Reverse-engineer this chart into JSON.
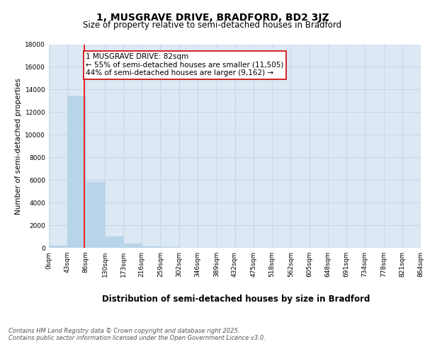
{
  "title_line1": "1, MUSGRAVE DRIVE, BRADFORD, BD2 3JZ",
  "title_line2": "Size of property relative to semi-detached houses in Bradford",
  "xlabel": "Distribution of semi-detached houses by size in Bradford",
  "ylabel": "Number of semi-detached properties",
  "annotation_title": "1 MUSGRAVE DRIVE: 82sqm",
  "annotation_line1": "← 55% of semi-detached houses are smaller (11,505)",
  "annotation_line2": "44% of semi-detached houses are larger (9,162) →",
  "footer_line1": "Contains HM Land Registry data © Crown copyright and database right 2025.",
  "footer_line2": "Contains public sector information licensed under the Open Government Licence v3.0.",
  "bar_edges": [
    0,
    43,
    86,
    130,
    173,
    216,
    259,
    302,
    346,
    389,
    432,
    475,
    518,
    562,
    605,
    648,
    691,
    734,
    778,
    821,
    864
  ],
  "bar_heights": [
    200,
    13400,
    5800,
    1000,
    350,
    130,
    60,
    0,
    0,
    0,
    0,
    0,
    0,
    0,
    0,
    0,
    0,
    0,
    0,
    0
  ],
  "bar_color": "#b8d4e8",
  "bar_edge_color": "#b8d4e8",
  "grid_color": "#c8d8e8",
  "bg_color": "#dce8f4",
  "red_line_x": 82,
  "ylim": [
    0,
    18000
  ],
  "yticks": [
    0,
    2000,
    4000,
    6000,
    8000,
    10000,
    12000,
    14000,
    16000,
    18000
  ],
  "tick_labels": [
    "0sqm",
    "43sqm",
    "86sqm",
    "130sqm",
    "173sqm",
    "216sqm",
    "259sqm",
    "302sqm",
    "346sqm",
    "389sqm",
    "432sqm",
    "475sqm",
    "518sqm",
    "562sqm",
    "605sqm",
    "648sqm",
    "691sqm",
    "734sqm",
    "778sqm",
    "821sqm",
    "864sqm"
  ],
  "annotation_box_color": "#ffffff",
  "annotation_box_edge": "#cc0000",
  "title_fontsize": 10,
  "subtitle_fontsize": 8.5,
  "ylabel_fontsize": 7.5,
  "xlabel_fontsize": 8.5,
  "tick_fontsize": 6.5,
  "annotation_fontsize": 7.5,
  "footer_fontsize": 6.0
}
